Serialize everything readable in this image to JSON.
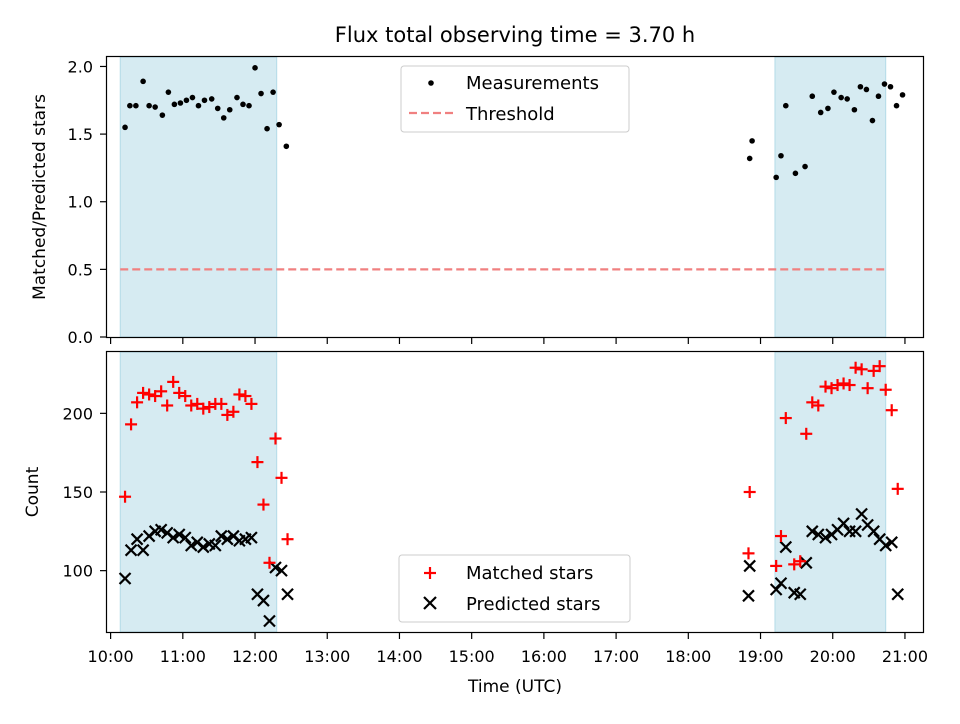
{
  "title": "Flux total observing time = 3.70 h",
  "colors": {
    "band": "#add8e6",
    "measurement": "#000000",
    "threshold": "#f08080",
    "matched": "#ff0000",
    "predicted": "#000000"
  },
  "chart_data": [
    {
      "type": "scatter",
      "ylabel": "Matched/Predicted stars",
      "ylim": [
        0,
        2.07
      ],
      "yticks": [
        "0.0",
        "0.5",
        "1.0",
        "1.5",
        "2.0"
      ],
      "xlim": [
        "09:57",
        "21:15"
      ],
      "grid": false,
      "legend_position": "top-center",
      "observing_windows": [
        [
          "10:08",
          "12:18"
        ],
        [
          "19:12",
          "20:44"
        ]
      ],
      "threshold": {
        "name": "Threshold",
        "value": 0.5,
        "x_range": [
          "10:08",
          "20:44"
        ]
      },
      "series": [
        {
          "name": "Measurements",
          "points": [
            [
              "10:12",
              1.55
            ],
            [
              "10:16",
              1.71
            ],
            [
              "10:21",
              1.71
            ],
            [
              "10:27",
              1.89
            ],
            [
              "10:32",
              1.71
            ],
            [
              "10:37",
              1.7
            ],
            [
              "10:43",
              1.64
            ],
            [
              "10:48",
              1.81
            ],
            [
              "10:53",
              1.72
            ],
            [
              "10:58",
              1.73
            ],
            [
              "11:03",
              1.75
            ],
            [
              "11:08",
              1.77
            ],
            [
              "11:13",
              1.71
            ],
            [
              "11:18",
              1.75
            ],
            [
              "11:24",
              1.76
            ],
            [
              "11:29",
              1.69
            ],
            [
              "11:34",
              1.62
            ],
            [
              "11:39",
              1.68
            ],
            [
              "11:45",
              1.77
            ],
            [
              "11:50",
              1.72
            ],
            [
              "11:55",
              1.71
            ],
            [
              "12:00",
              1.99
            ],
            [
              "12:05",
              1.8
            ],
            [
              "12:10",
              1.54
            ],
            [
              "12:15",
              1.81
            ],
            [
              "12:20",
              1.57
            ],
            [
              "12:26",
              1.41
            ],
            [
              "18:51",
              1.32
            ],
            [
              "18:53",
              1.45
            ],
            [
              "19:13",
              1.18
            ],
            [
              "19:17",
              1.34
            ],
            [
              "19:21",
              1.71
            ],
            [
              "19:29",
              1.21
            ],
            [
              "19:37",
              1.26
            ],
            [
              "19:43",
              1.78
            ],
            [
              "19:50",
              1.66
            ],
            [
              "19:56",
              1.69
            ],
            [
              "20:01",
              1.81
            ],
            [
              "20:07",
              1.77
            ],
            [
              "20:12",
              1.76
            ],
            [
              "20:18",
              1.68
            ],
            [
              "20:23",
              1.85
            ],
            [
              "20:28",
              1.83
            ],
            [
              "20:33",
              1.6
            ],
            [
              "20:38",
              1.78
            ],
            [
              "20:43",
              1.87
            ],
            [
              "20:48",
              1.85
            ],
            [
              "20:53",
              1.71
            ],
            [
              "20:58",
              1.79
            ]
          ]
        }
      ]
    },
    {
      "type": "scatter",
      "ylabel": "Count",
      "xlabel": "Time (UTC)",
      "ylim": [
        61,
        239
      ],
      "yticks": [
        "100",
        "150",
        "200"
      ],
      "xlim": [
        "09:57",
        "21:15"
      ],
      "xticks": [
        "10:00",
        "11:00",
        "12:00",
        "13:00",
        "14:00",
        "15:00",
        "16:00",
        "17:00",
        "18:00",
        "19:00",
        "20:00",
        "21:00"
      ],
      "grid": false,
      "legend_position": "bottom-center",
      "observing_windows": [
        [
          "10:08",
          "12:18"
        ],
        [
          "19:12",
          "20:44"
        ]
      ],
      "series": [
        {
          "name": "Matched stars",
          "marker": "+",
          "points": [
            [
              "10:12",
              147
            ],
            [
              "10:17",
              193
            ],
            [
              "10:22",
              207
            ],
            [
              "10:27",
              213
            ],
            [
              "10:32",
              212
            ],
            [
              "10:37",
              211
            ],
            [
              "10:42",
              214
            ],
            [
              "10:47",
              205
            ],
            [
              "10:52",
              220
            ],
            [
              "10:57",
              213
            ],
            [
              "11:02",
              211
            ],
            [
              "11:07",
              205
            ],
            [
              "11:12",
              206
            ],
            [
              "11:17",
              203
            ],
            [
              "11:22",
              204
            ],
            [
              "11:27",
              206
            ],
            [
              "11:32",
              206
            ],
            [
              "11:37",
              199
            ],
            [
              "11:42",
              201
            ],
            [
              "11:47",
              212
            ],
            [
              "11:52",
              211
            ],
            [
              "11:57",
              206
            ],
            [
              "12:02",
              169
            ],
            [
              "12:07",
              142
            ],
            [
              "12:12",
              105
            ],
            [
              "12:17",
              184
            ],
            [
              "12:22",
              159
            ],
            [
              "12:27",
              120
            ],
            [
              "18:50",
              111
            ],
            [
              "18:51",
              150
            ],
            [
              "19:13",
              103
            ],
            [
              "19:17",
              122
            ],
            [
              "19:21",
              197
            ],
            [
              "19:28",
              104
            ],
            [
              "19:33",
              106
            ],
            [
              "19:38",
              187
            ],
            [
              "19:43",
              207
            ],
            [
              "19:48",
              205
            ],
            [
              "19:54",
              217
            ],
            [
              "19:59",
              216
            ],
            [
              "20:04",
              218
            ],
            [
              "20:09",
              219
            ],
            [
              "20:14",
              218
            ],
            [
              "20:19",
              229
            ],
            [
              "20:24",
              228
            ],
            [
              "20:29",
              216
            ],
            [
              "20:34",
              227
            ],
            [
              "20:39",
              230
            ],
            [
              "20:44",
              215
            ],
            [
              "20:49",
              202
            ],
            [
              "20:54",
              152
            ]
          ]
        },
        {
          "name": "Predicted stars",
          "marker": "x",
          "points": [
            [
              "10:12",
              95
            ],
            [
              "10:17",
              113
            ],
            [
              "10:22",
              120
            ],
            [
              "10:27",
              113
            ],
            [
              "10:32",
              122
            ],
            [
              "10:37",
              125
            ],
            [
              "10:42",
              126
            ],
            [
              "10:47",
              124
            ],
            [
              "10:52",
              121
            ],
            [
              "10:57",
              123
            ],
            [
              "11:02",
              121
            ],
            [
              "11:07",
              116
            ],
            [
              "11:12",
              118
            ],
            [
              "11:17",
              115
            ],
            [
              "11:22",
              117
            ],
            [
              "11:27",
              116
            ],
            [
              "11:32",
              122
            ],
            [
              "11:37",
              120
            ],
            [
              "11:42",
              122
            ],
            [
              "11:47",
              119
            ],
            [
              "11:52",
              120
            ],
            [
              "11:57",
              121
            ],
            [
              "12:02",
              85
            ],
            [
              "12:07",
              81
            ],
            [
              "12:12",
              68
            ],
            [
              "12:17",
              102
            ],
            [
              "12:22",
              100
            ],
            [
              "12:27",
              85
            ],
            [
              "18:50",
              84
            ],
            [
              "18:51",
              103
            ],
            [
              "19:13",
              88
            ],
            [
              "19:17",
              92
            ],
            [
              "19:21",
              115
            ],
            [
              "19:28",
              86
            ],
            [
              "19:33",
              85
            ],
            [
              "19:38",
              105
            ],
            [
              "19:43",
              125
            ],
            [
              "19:48",
              123
            ],
            [
              "19:54",
              121
            ],
            [
              "19:59",
              123
            ],
            [
              "20:04",
              126
            ],
            [
              "20:09",
              130
            ],
            [
              "20:14",
              125
            ],
            [
              "20:19",
              125
            ],
            [
              "20:24",
              136
            ],
            [
              "20:29",
              129
            ],
            [
              "20:34",
              125
            ],
            [
              "20:39",
              120
            ],
            [
              "20:44",
              116
            ],
            [
              "20:49",
              118
            ],
            [
              "20:54",
              85
            ]
          ]
        }
      ]
    }
  ]
}
